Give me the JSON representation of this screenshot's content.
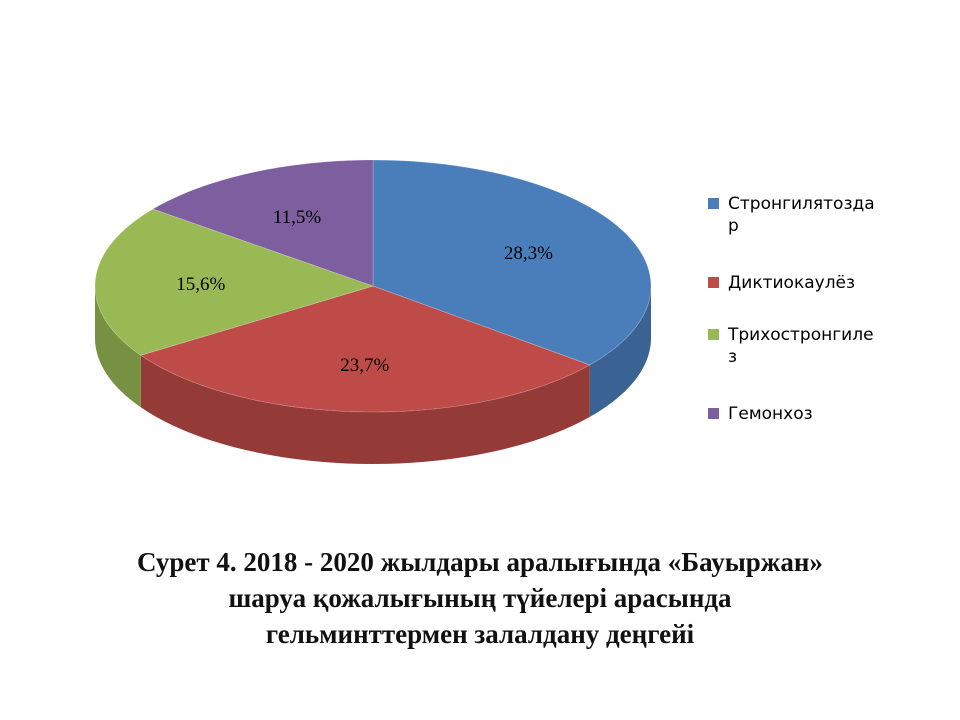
{
  "chart_data": {
    "type": "pie",
    "categories": [
      "Стронгилятоздар",
      "Диктиокаулёз",
      "Трихостронгилез",
      "Гемонхоз"
    ],
    "values": [
      28.3,
      23.7,
      15.6,
      11.5
    ],
    "value_labels": [
      "28,3%",
      "23,7%",
      "15,6%",
      "11,5%"
    ],
    "legend_lines": [
      [
        "Стронгилятозда",
        "р"
      ],
      [
        "Диктиокаулёз"
      ],
      [
        "Трихостронгиле",
        "з"
      ],
      [
        "Гемонхоз"
      ]
    ],
    "colors": [
      "#4A7EBB",
      "#BE4B48",
      "#98B954",
      "#7D5FA0"
    ],
    "legend_position": "right",
    "style": "3d"
  },
  "caption": {
    "line1": "Сурет 4. 2018 - 2020 жылдары аралығында «Бауыржан»",
    "line2": "шаруа қожалығының түйелері арасында",
    "line3": "гельминттермен залалдану деңгейі"
  }
}
